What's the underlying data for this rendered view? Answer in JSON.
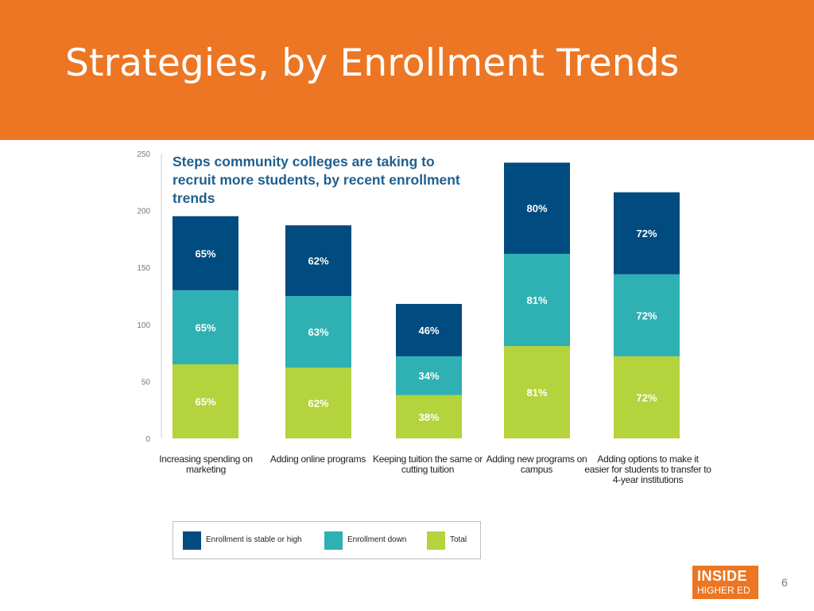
{
  "slide": {
    "title": "Strategies, by Enrollment Trends",
    "page_number": "6",
    "logo": {
      "line1": "INSIDE",
      "line2": "HIGHER ED"
    }
  },
  "colors": {
    "header_bg": "#ec7623",
    "stable_or_high": "#004b7f",
    "enrollment_down": "#2fb0b2",
    "total": "#b4d33c",
    "chart_title": "#1f5f8f"
  },
  "chart_data": {
    "type": "bar",
    "stacked": true,
    "title": "Steps community colleges are taking to recruit more students, by recent enrollment trends",
    "categories": [
      "Increasing spending on marketing",
      "Adding online programs",
      "Keeping tuition the same or cutting tuition",
      "Adding new programs on campus",
      "Adding options to make it easier for students to transfer to 4-year institutions"
    ],
    "series": [
      {
        "name": "Total",
        "values": [
          65,
          62,
          38,
          81,
          72
        ],
        "labels": [
          "65%",
          "62%",
          "38%",
          "81%",
          "72%"
        ]
      },
      {
        "name": "Enrollment down",
        "values": [
          65,
          63,
          34,
          81,
          72
        ],
        "labels": [
          "65%",
          "63%",
          "34%",
          "81%",
          "72%"
        ]
      },
      {
        "name": "Enrollment is stable or high",
        "values": [
          65,
          62,
          46,
          80,
          72
        ],
        "labels": [
          "65%",
          "62%",
          "46%",
          "80%",
          "72%"
        ]
      }
    ],
    "yticks": [
      0,
      50,
      100,
      150,
      200,
      250
    ],
    "ylim": [
      0,
      250
    ],
    "legend": [
      "Enrollment is stable or high",
      "Enrollment down",
      "Total"
    ],
    "legend_position": "bottom"
  }
}
